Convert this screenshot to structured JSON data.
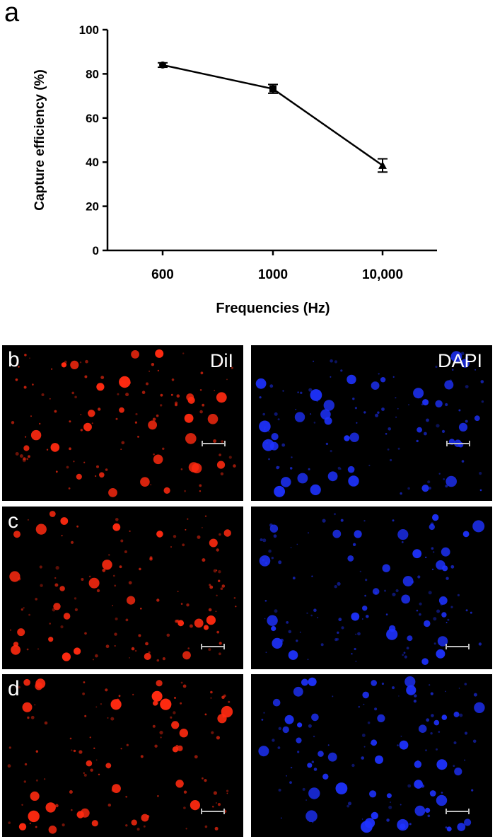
{
  "figure_label": "a",
  "chart_data": {
    "type": "line",
    "categories": [
      "600",
      "1000",
      "10,000"
    ],
    "values": [
      84,
      73.2,
      38.5
    ],
    "errors": [
      1.0,
      2.0,
      3.0
    ],
    "ylabel": "Capture efficiency (%)",
    "xlabel": "Frequencies (Hz)",
    "ylim": [
      0,
      100
    ],
    "yticks": [
      0,
      20,
      40,
      60,
      80,
      100
    ],
    "markers": [
      "circle",
      "square",
      "triangle"
    ],
    "grid": false,
    "line_color": "#000000"
  },
  "micrographs": {
    "rows": [
      {
        "letter": "b",
        "dil_label": "DiI",
        "dapi_label": "DAPI"
      },
      {
        "letter": "c",
        "dil_label": "",
        "dapi_label": ""
      },
      {
        "letter": "d",
        "dil_label": "",
        "dapi_label": ""
      }
    ],
    "colors": {
      "dil": "#ff2a10",
      "dapi": "#1e32ff",
      "background": "#000000",
      "scale_bar": "#bfbfbf"
    }
  }
}
